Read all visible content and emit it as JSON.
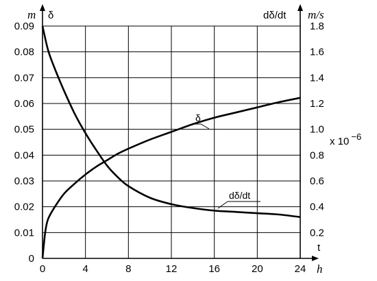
{
  "chart_data": {
    "type": "line",
    "x_unit": "h",
    "x_label": "t",
    "x_ticks": [
      "0",
      "4",
      "8",
      "12",
      "16",
      "20",
      "24"
    ],
    "xlim": [
      0,
      24
    ],
    "left_axis": {
      "unit": "m",
      "label": "δ",
      "ticks": [
        "0",
        "0.01",
        "0.02",
        "0.03",
        "0.04",
        "0.05",
        "0.06",
        "0.07",
        "0.08",
        "0.09"
      ],
      "ylim": [
        0,
        0.09
      ]
    },
    "right_axis": {
      "unit": "m/s",
      "label": "dδ/dt",
      "ticks": [
        "0.2",
        "0.4",
        "0.6",
        "0.8",
        "1.0",
        "1.2",
        "1.4",
        "1.6",
        "1.8"
      ],
      "ylim": [
        0.2,
        1.8
      ],
      "multiplier": "x 10",
      "multiplier_exponent": "−6"
    },
    "grid": true,
    "series": [
      {
        "name": "δ",
        "axis": "left",
        "x": [
          0,
          0.25,
          0.5,
          1,
          2,
          3,
          4,
          5,
          6,
          7,
          8,
          10,
          12,
          14,
          16,
          18,
          20,
          22,
          24
        ],
        "y": [
          0,
          0.01,
          0.015,
          0.019,
          0.025,
          0.029,
          0.0325,
          0.0355,
          0.038,
          0.0405,
          0.0425,
          0.046,
          0.049,
          0.052,
          0.0545,
          0.0565,
          0.0585,
          0.0605,
          0.0622
        ]
      },
      {
        "name": "dδ/dt",
        "axis": "right",
        "x": [
          0,
          0.5,
          1,
          2,
          3,
          4,
          5,
          6,
          7,
          8,
          10,
          12,
          14,
          16,
          18,
          20,
          22,
          24
        ],
        "y": [
          1.8,
          1.62,
          1.5,
          1.3,
          1.12,
          0.97,
          0.84,
          0.72,
          0.63,
          0.56,
          0.47,
          0.42,
          0.39,
          0.37,
          0.36,
          0.35,
          0.34,
          0.32
        ]
      }
    ]
  }
}
